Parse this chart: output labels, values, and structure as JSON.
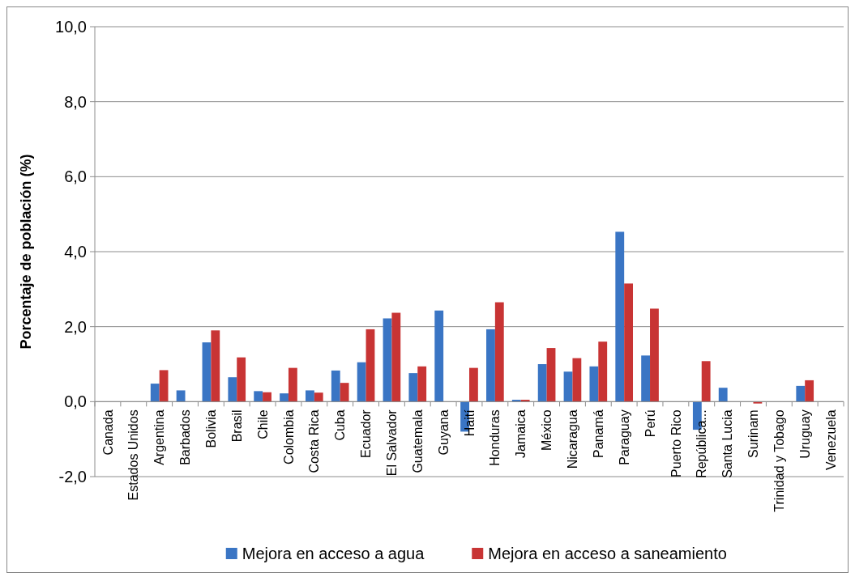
{
  "chart_data": {
    "type": "bar",
    "ylabel": "Porcentaje de población (%)",
    "categories": [
      "Canada",
      "Estados Unidos",
      "Argentina",
      "Barbados",
      "Bolivia",
      "Brasil",
      "Chile",
      "Colombia",
      "Costa Rica",
      "Cuba",
      "Ecuador",
      "El Salvador",
      "Guatemala",
      "Guyana",
      "Haití",
      "Honduras",
      "Jamaica",
      "México",
      "Nicaragua",
      "Panamá",
      "Paraguay",
      "Perú",
      "Puerto Rico",
      "República...",
      "Santa Lucia",
      "Surinam",
      "Trinidad y Tobago",
      "Uruguay",
      "Venezuela"
    ],
    "series": [
      {
        "name": "Mejora en acceso a agua",
        "color": "#3a75c4",
        "values": [
          0,
          0,
          0.48,
          0.3,
          1.58,
          0.65,
          0.28,
          0.22,
          0.3,
          0.83,
          1.05,
          2.22,
          0.76,
          2.43,
          -0.8,
          1.93,
          0.05,
          1.0,
          0.8,
          0.94,
          4.53,
          1.23,
          0,
          -0.75,
          0.37,
          0,
          0,
          0.42,
          0
        ]
      },
      {
        "name": "Mejora en acceso a saneamiento",
        "color": "#c83434",
        "values": [
          0,
          0,
          0.84,
          0,
          1.9,
          1.18,
          0.25,
          0.9,
          0.24,
          0.5,
          1.93,
          2.37,
          0.94,
          0,
          0.9,
          2.65,
          0.05,
          1.43,
          1.16,
          1.6,
          3.15,
          2.48,
          0,
          1.08,
          0,
          -0.05,
          0,
          0.57,
          0
        ]
      }
    ],
    "ylim": [
      -2,
      10
    ],
    "yticks": [
      {
        "value": -2,
        "label": "-2,0"
      },
      {
        "value": 0,
        "label": "0,0"
      },
      {
        "value": 2,
        "label": "2,0"
      },
      {
        "value": 4,
        "label": "4,0"
      },
      {
        "value": 6,
        "label": "6,0"
      },
      {
        "value": 8,
        "label": "8,0"
      },
      {
        "value": 10,
        "label": "10,0"
      }
    ],
    "grid": "y",
    "legend": "bottom"
  }
}
